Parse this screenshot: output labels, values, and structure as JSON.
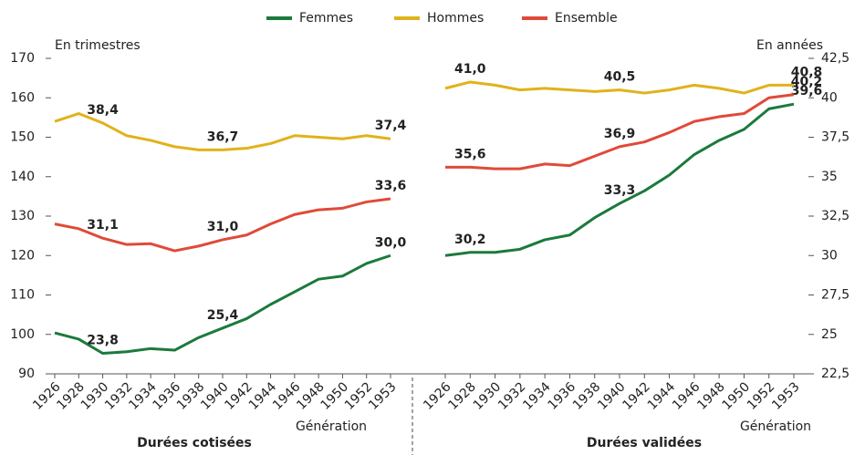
{
  "chart_data": {
    "type": "line",
    "categories": [
      "1926",
      "1928",
      "1930",
      "1932",
      "1934",
      "1936",
      "1938",
      "1940",
      "1942",
      "1944",
      "1946",
      "1948",
      "1950",
      "1952",
      "1953"
    ],
    "series": [
      {
        "name": "Femmes",
        "color": "#1b7a3c"
      },
      {
        "name": "Hommes",
        "color": "#e1b21b"
      },
      {
        "name": "Ensemble",
        "color": "#e04a38"
      }
    ],
    "ylabel": "En trimestres",
    "ylim": [
      90,
      170
    ],
    "yticks": [
      90,
      100,
      110,
      120,
      130,
      140,
      150,
      160,
      170
    ],
    "y2label": "En années",
    "y2lim": [
      22.5,
      42.5
    ],
    "y2ticks": [
      {
        "value": 22.5,
        "label": "22,5"
      },
      25,
      {
        "value": 27.5,
        "label": "27,5"
      },
      30,
      {
        "value": 32.5,
        "label": "32,5"
      },
      35,
      {
        "value": 37.5,
        "label": "37,5"
      },
      40,
      {
        "value": 42.5,
        "label": "42,5"
      }
    ],
    "xlabel": "Génération",
    "panels": [
      {
        "title": "Durées cotisées",
        "series": [
          {
            "axis": "y2",
            "values": [
              25.1,
              24.7,
              23.8,
              23.9,
              24.1,
              24.0,
              24.8,
              25.4,
              26.0,
              26.9,
              27.7,
              28.5,
              28.7,
              29.5,
              30.0
            ],
            "value_labels": [
              null,
              null,
              "23,8",
              null,
              null,
              null,
              null,
              "25,4",
              null,
              null,
              null,
              null,
              null,
              null,
              "30,0"
            ]
          },
          {
            "axis": "y2",
            "values": [
              38.5,
              39.0,
              38.4,
              37.6,
              37.3,
              36.9,
              36.7,
              36.7,
              36.8,
              37.1,
              37.6,
              37.5,
              37.4,
              37.6,
              37.4
            ],
            "value_labels": [
              null,
              null,
              "38,4",
              null,
              null,
              null,
              null,
              "36,7",
              null,
              null,
              null,
              null,
              null,
              null,
              "37,4"
            ]
          },
          {
            "axis": "y2",
            "values": [
              32.0,
              31.7,
              31.1,
              30.7,
              30.75,
              30.3,
              30.6,
              31.0,
              31.3,
              32.0,
              32.6,
              32.9,
              33.0,
              33.4,
              33.6
            ],
            "value_labels": [
              null,
              null,
              "31,1",
              null,
              null,
              null,
              null,
              "31,0",
              null,
              null,
              null,
              null,
              null,
              null,
              "33,6"
            ]
          }
        ]
      },
      {
        "title": "Durées validées",
        "series": [
          {
            "axis": "y2",
            "values": [
              30.0,
              30.2,
              30.2,
              30.4,
              31.0,
              31.3,
              32.4,
              33.3,
              34.1,
              35.1,
              36.4,
              37.3,
              38.0,
              39.3,
              39.6
            ],
            "value_labels": [
              null,
              "30,2",
              null,
              null,
              null,
              null,
              null,
              "33,3",
              null,
              null,
              null,
              null,
              null,
              null,
              "39,6"
            ]
          },
          {
            "axis": "y2",
            "values": [
              40.6,
              41.0,
              40.8,
              40.5,
              40.6,
              40.5,
              40.4,
              40.5,
              40.3,
              40.5,
              40.8,
              40.6,
              40.3,
              40.8,
              40.8
            ],
            "value_labels": [
              null,
              "41,0",
              null,
              null,
              null,
              null,
              null,
              "40,5",
              null,
              null,
              null,
              null,
              null,
              null,
              "40,8"
            ]
          },
          {
            "axis": "y2",
            "values": [
              35.6,
              35.6,
              35.5,
              35.5,
              35.8,
              35.7,
              36.3,
              36.9,
              37.2,
              37.8,
              38.5,
              38.8,
              39.0,
              40.0,
              40.2
            ],
            "value_labels": [
              null,
              "35,6",
              null,
              null,
              null,
              null,
              null,
              "36,9",
              null,
              null,
              null,
              null,
              null,
              null,
              "40,2"
            ]
          }
        ]
      }
    ]
  }
}
